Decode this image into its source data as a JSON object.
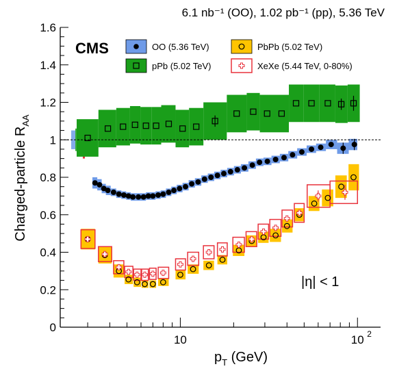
{
  "header": {
    "lumi_text": "6.1 nb⁻¹ (OO), 1.02 pb⁻¹ (pp), 5.36 TeV",
    "experiment_label": "CMS",
    "eta_label": "|η| < 1"
  },
  "colors": {
    "OO": "#6f9be8",
    "pPb": "#1a9e1a",
    "PbPb": "#ffc400",
    "XeXe": "#e8323c",
    "marker": "#000000"
  },
  "chart_data": {
    "type": "scatter",
    "xlabel": "p_T (GeV)",
    "xlabel_main": "p",
    "xlabel_sub": "T",
    "xlabel_tail": " (GeV)",
    "ylabel": "Charged-particle R_AA",
    "ylabel_main": "Charged-particle R",
    "ylabel_sub": "AA",
    "xscale": "log",
    "xlim": [
      2.1,
      135
    ],
    "ylim": [
      0,
      1.6
    ],
    "x_tick_labels": [
      {
        "value": 10,
        "label": "10"
      },
      {
        "value": 100,
        "label": "10",
        "sup": "2"
      }
    ],
    "y_tick_labels": [
      {
        "value": 0,
        "label": "0"
      },
      {
        "value": 0.2,
        "label": "0.2"
      },
      {
        "value": 0.4,
        "label": "0.4"
      },
      {
        "value": 0.6,
        "label": "0.6"
      },
      {
        "value": 0.8,
        "label": "0.8"
      },
      {
        "value": 1.0,
        "label": "1"
      },
      {
        "value": 1.2,
        "label": "1.2"
      },
      {
        "value": 1.4,
        "label": "1.4"
      },
      {
        "value": 1.6,
        "label": "1.6"
      }
    ],
    "reference_line": 1.0,
    "legend": {
      "placement": "top",
      "entries": [
        {
          "series": "OO",
          "label": "OO (5.36 TeV)"
        },
        {
          "series": "PbPb",
          "label": "PbPb (5.02 TeV)"
        },
        {
          "series": "pPb",
          "label": "pPb (5.02 TeV)"
        },
        {
          "series": "XeXe",
          "label": "XeXe (5.44 TeV, 0-80%)"
        }
      ]
    },
    "normalization_uncertainties": [
      {
        "series": "OO",
        "low": 0.95,
        "high": 1.05
      },
      {
        "series": "pPb",
        "low": 0.94,
        "high": 1.06
      },
      {
        "series": "PbPb",
        "low": 0.96,
        "high": 1.04
      },
      {
        "series": "XeXe",
        "low": 0.9,
        "high": 1.07
      }
    ],
    "series": [
      {
        "name": "OO",
        "marker": "filled-circle",
        "points": [
          {
            "x": 3.3,
            "y": 0.77,
            "syst": 0.03
          },
          {
            "x": 3.5,
            "y": 0.76,
            "syst": 0.03
          },
          {
            "x": 3.7,
            "y": 0.74,
            "syst": 0.025
          },
          {
            "x": 3.9,
            "y": 0.73,
            "syst": 0.025
          },
          {
            "x": 4.2,
            "y": 0.72,
            "syst": 0.02
          },
          {
            "x": 4.5,
            "y": 0.71,
            "syst": 0.02
          },
          {
            "x": 4.8,
            "y": 0.705,
            "syst": 0.02
          },
          {
            "x": 5.1,
            "y": 0.7,
            "syst": 0.02
          },
          {
            "x": 5.4,
            "y": 0.695,
            "syst": 0.02
          },
          {
            "x": 5.8,
            "y": 0.695,
            "syst": 0.02
          },
          {
            "x": 6.2,
            "y": 0.695,
            "syst": 0.02
          },
          {
            "x": 6.6,
            "y": 0.7,
            "syst": 0.02
          },
          {
            "x": 7.0,
            "y": 0.7,
            "syst": 0.02
          },
          {
            "x": 7.5,
            "y": 0.705,
            "syst": 0.02
          },
          {
            "x": 8.0,
            "y": 0.71,
            "syst": 0.02
          },
          {
            "x": 8.6,
            "y": 0.72,
            "syst": 0.02
          },
          {
            "x": 9.2,
            "y": 0.73,
            "syst": 0.02
          },
          {
            "x": 9.9,
            "y": 0.74,
            "syst": 0.02
          },
          {
            "x": 10.7,
            "y": 0.75,
            "syst": 0.02
          },
          {
            "x": 11.6,
            "y": 0.765,
            "syst": 0.02
          },
          {
            "x": 12.6,
            "y": 0.775,
            "syst": 0.02
          },
          {
            "x": 13.7,
            "y": 0.79,
            "syst": 0.02
          },
          {
            "x": 14.9,
            "y": 0.8,
            "syst": 0.02
          },
          {
            "x": 16.2,
            "y": 0.81,
            "syst": 0.02
          },
          {
            "x": 17.6,
            "y": 0.82,
            "syst": 0.02
          },
          {
            "x": 19.2,
            "y": 0.83,
            "syst": 0.02
          },
          {
            "x": 21.0,
            "y": 0.84,
            "syst": 0.02
          },
          {
            "x": 23.0,
            "y": 0.85,
            "syst": 0.02
          },
          {
            "x": 25.5,
            "y": 0.865,
            "syst": 0.02
          },
          {
            "x": 28.0,
            "y": 0.88,
            "syst": 0.02
          },
          {
            "x": 31.0,
            "y": 0.885,
            "syst": 0.02
          },
          {
            "x": 34.5,
            "y": 0.895,
            "syst": 0.02
          },
          {
            "x": 38.5,
            "y": 0.905,
            "syst": 0.02
          },
          {
            "x": 43.0,
            "y": 0.92,
            "syst": 0.02
          },
          {
            "x": 48.5,
            "y": 0.935,
            "syst": 0.02
          },
          {
            "x": 55.0,
            "y": 0.95,
            "syst": 0.02
          },
          {
            "x": 62.0,
            "y": 0.96,
            "syst": 0.02
          },
          {
            "x": 71.0,
            "y": 0.975,
            "syst": 0.025
          },
          {
            "x": 83.0,
            "y": 0.955,
            "syst": 0.03,
            "stat": 0.03
          },
          {
            "x": 96.0,
            "y": 0.975,
            "syst": 0.03,
            "stat": 0.03
          }
        ]
      },
      {
        "name": "pPb",
        "marker": "open-square",
        "points": [
          {
            "x": 3.0,
            "y": 1.01,
            "xlo": 2.6,
            "xhi": 3.45,
            "syst": 0.1
          },
          {
            "x": 3.9,
            "y": 1.06,
            "xlo": 3.45,
            "xhi": 4.35,
            "syst": 0.1
          },
          {
            "x": 4.75,
            "y": 1.07,
            "xlo": 4.35,
            "xhi": 5.2,
            "syst": 0.1
          },
          {
            "x": 5.55,
            "y": 1.08,
            "xlo": 5.2,
            "xhi": 5.95,
            "syst": 0.1
          },
          {
            "x": 6.4,
            "y": 1.075,
            "xlo": 5.95,
            "xhi": 6.9,
            "syst": 0.1
          },
          {
            "x": 7.3,
            "y": 1.075,
            "xlo": 6.9,
            "xhi": 7.8,
            "syst": 0.1
          },
          {
            "x": 8.6,
            "y": 1.085,
            "xlo": 7.8,
            "xhi": 9.4,
            "syst": 0.1
          },
          {
            "x": 10.3,
            "y": 1.06,
            "xlo": 9.4,
            "xhi": 11.2,
            "syst": 0.1
          },
          {
            "x": 12.3,
            "y": 1.07,
            "xlo": 11.2,
            "xhi": 13.5,
            "syst": 0.1
          },
          {
            "x": 15.7,
            "y": 1.1,
            "xlo": 13.5,
            "xhi": 18.3,
            "stat": 0.03,
            "syst": 0.1
          },
          {
            "x": 20.8,
            "y": 1.14,
            "xlo": 18.3,
            "xhi": 23.7,
            "syst": 0.1
          },
          {
            "x": 25.8,
            "y": 1.15,
            "xlo": 23.7,
            "xhi": 28.1,
            "syst": 0.1
          },
          {
            "x": 30.9,
            "y": 1.14,
            "xlo": 28.1,
            "xhi": 34.0,
            "syst": 0.1
          },
          {
            "x": 37.3,
            "y": 1.14,
            "xlo": 34.0,
            "xhi": 41.0,
            "syst": 0.1
          },
          {
            "x": 45.0,
            "y": 1.195,
            "xlo": 41.0,
            "xhi": 49.5,
            "syst": 0.1
          },
          {
            "x": 55.0,
            "y": 1.195,
            "xlo": 49.5,
            "xhi": 61.0,
            "syst": 0.1
          },
          {
            "x": 68.0,
            "y": 1.195,
            "xlo": 61.0,
            "xhi": 75.0,
            "syst": 0.1
          },
          {
            "x": 81.0,
            "y": 1.19,
            "xlo": 75.0,
            "xhi": 88.0,
            "stat": 0.03,
            "syst": 0.1
          },
          {
            "x": 95.0,
            "y": 1.195,
            "xlo": 88.0,
            "xhi": 103.0,
            "stat": 0.04,
            "syst": 0.1
          }
        ]
      },
      {
        "name": "PbPb",
        "marker": "open-circle",
        "points": [
          {
            "x": 3.0,
            "y": 0.47,
            "xlo": 2.75,
            "xhi": 3.3,
            "syst": 0.055
          },
          {
            "x": 3.75,
            "y": 0.385,
            "xlo": 3.45,
            "xhi": 4.1,
            "syst": 0.045
          },
          {
            "x": 4.5,
            "y": 0.3,
            "xlo": 4.2,
            "xhi": 4.8,
            "syst": 0.035
          },
          {
            "x": 5.1,
            "y": 0.255,
            "xlo": 4.85,
            "xhi": 5.4,
            "syst": 0.025
          },
          {
            "x": 5.7,
            "y": 0.24,
            "xlo": 5.45,
            "xhi": 6.0,
            "syst": 0.025
          },
          {
            "x": 6.3,
            "y": 0.23,
            "xlo": 6.05,
            "xhi": 6.6,
            "syst": 0.02
          },
          {
            "x": 7.0,
            "y": 0.23,
            "xlo": 6.7,
            "xhi": 7.3,
            "syst": 0.02
          },
          {
            "x": 8.0,
            "y": 0.24,
            "xlo": 7.5,
            "xhi": 8.6,
            "syst": 0.02
          },
          {
            "x": 10.0,
            "y": 0.28,
            "xlo": 9.4,
            "xhi": 10.7,
            "syst": 0.025
          },
          {
            "x": 11.8,
            "y": 0.31,
            "xlo": 11.0,
            "xhi": 12.7,
            "syst": 0.025
          },
          {
            "x": 14.5,
            "y": 0.33,
            "xlo": 13.5,
            "xhi": 15.5,
            "syst": 0.025
          },
          {
            "x": 17.3,
            "y": 0.36,
            "xlo": 16.2,
            "xhi": 18.4,
            "syst": 0.025
          },
          {
            "x": 21.4,
            "y": 0.41,
            "xlo": 19.8,
            "xhi": 23.0,
            "syst": 0.03
          },
          {
            "x": 25.3,
            "y": 0.46,
            "xlo": 23.5,
            "xhi": 27.0,
            "syst": 0.03
          },
          {
            "x": 29.5,
            "y": 0.48,
            "xlo": 27.5,
            "xhi": 31.5,
            "syst": 0.03
          },
          {
            "x": 34.5,
            "y": 0.49,
            "xlo": 32.0,
            "xhi": 37.0,
            "syst": 0.035
          },
          {
            "x": 40.0,
            "y": 0.54,
            "xlo": 37.5,
            "xhi": 43.0,
            "syst": 0.035
          },
          {
            "x": 47.0,
            "y": 0.6,
            "xlo": 44.0,
            "xhi": 50.0,
            "syst": 0.035
          },
          {
            "x": 57.0,
            "y": 0.66,
            "xlo": 53.0,
            "xhi": 61.0,
            "syst": 0.04
          },
          {
            "x": 68.0,
            "y": 0.69,
            "xlo": 63.0,
            "xhi": 73.0,
            "syst": 0.045
          },
          {
            "x": 81.0,
            "y": 0.75,
            "xlo": 75.0,
            "xhi": 87.0,
            "syst": 0.06
          },
          {
            "x": 95.0,
            "y": 0.8,
            "xlo": 89.0,
            "xhi": 102.0,
            "syst": 0.07
          }
        ]
      },
      {
        "name": "XeXe",
        "marker": "open-cross",
        "points": [
          {
            "x": 3.0,
            "y": 0.47,
            "xlo": 2.75,
            "xhi": 3.3,
            "syst": 0.05
          },
          {
            "x": 3.75,
            "y": 0.39,
            "xlo": 3.45,
            "xhi": 4.1,
            "syst": 0.04
          },
          {
            "x": 4.5,
            "y": 0.32,
            "xlo": 4.2,
            "xhi": 4.8,
            "syst": 0.035
          },
          {
            "x": 5.1,
            "y": 0.295,
            "xlo": 4.85,
            "xhi": 5.4,
            "syst": 0.03
          },
          {
            "x": 5.7,
            "y": 0.28,
            "xlo": 5.45,
            "xhi": 6.0,
            "syst": 0.03
          },
          {
            "x": 6.3,
            "y": 0.28,
            "xlo": 6.05,
            "xhi": 6.6,
            "syst": 0.03
          },
          {
            "x": 7.0,
            "y": 0.285,
            "xlo": 6.7,
            "xhi": 7.3,
            "syst": 0.03
          },
          {
            "x": 8.0,
            "y": 0.29,
            "xlo": 7.5,
            "xhi": 8.6,
            "syst": 0.03
          },
          {
            "x": 10.0,
            "y": 0.335,
            "xlo": 9.4,
            "xhi": 10.7,
            "syst": 0.03
          },
          {
            "x": 11.8,
            "y": 0.365,
            "xlo": 11.0,
            "xhi": 12.7,
            "syst": 0.035
          },
          {
            "x": 14.5,
            "y": 0.4,
            "xlo": 13.5,
            "xhi": 15.5,
            "syst": 0.035
          },
          {
            "x": 17.3,
            "y": 0.415,
            "xlo": 16.2,
            "xhi": 18.4,
            "syst": 0.035
          },
          {
            "x": 21.4,
            "y": 0.44,
            "xlo": 19.8,
            "xhi": 23.0,
            "syst": 0.04
          },
          {
            "x": 25.3,
            "y": 0.47,
            "xlo": 23.5,
            "xhi": 27.0,
            "syst": 0.04
          },
          {
            "x": 29.5,
            "y": 0.51,
            "xlo": 27.5,
            "xhi": 31.5,
            "syst": 0.04
          },
          {
            "x": 34.5,
            "y": 0.53,
            "xlo": 32.0,
            "xhi": 37.0,
            "syst": 0.045
          },
          {
            "x": 40.0,
            "y": 0.58,
            "xlo": 37.5,
            "xhi": 43.0,
            "syst": 0.045
          },
          {
            "x": 47.0,
            "y": 0.61,
            "xlo": 44.0,
            "xhi": 50.0,
            "syst": 0.05
          },
          {
            "x": 60.0,
            "y": 0.7,
            "xlo": 52.0,
            "xhi": 70.0,
            "stat": 0.03,
            "syst": 0.06
          },
          {
            "x": 85.0,
            "y": 0.72,
            "xlo": 70.0,
            "xhi": 100.0,
            "stat": 0.04,
            "syst": 0.06
          }
        ]
      }
    ]
  }
}
